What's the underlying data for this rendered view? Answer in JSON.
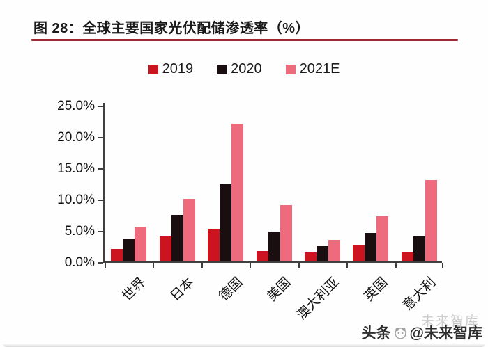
{
  "page": {
    "title": "图 28：全球主要国家光伏配储渗透率（%）"
  },
  "colors": {
    "underline_red": "#9a2b33",
    "axis": "#3f3f3f",
    "series_2019": "#cc1420",
    "series_2020": "#1b0e10",
    "series_2021e": "#ee6b7e"
  },
  "chart_data": {
    "type": "bar",
    "title": "全球主要国家光伏配储渗透率（%）",
    "xlabel": "",
    "ylabel": "",
    "ylim": [
      0,
      25
    ],
    "grid": false,
    "legend_position": "top-center",
    "categories": [
      "世界",
      "日本",
      "德国",
      "美国",
      "澳大利亚",
      "英国",
      "意大利"
    ],
    "series": [
      {
        "name": "2019",
        "color": "#cc1420",
        "values": [
          2.0,
          4.0,
          5.2,
          1.7,
          1.4,
          2.7,
          1.5
        ]
      },
      {
        "name": "2020",
        "color": "#1b0e10",
        "values": [
          3.7,
          7.5,
          12.3,
          4.8,
          2.5,
          4.6,
          4.0
        ]
      },
      {
        "name": "2021E",
        "color": "#ee6b7e",
        "values": [
          5.6,
          10.0,
          22.0,
          9.0,
          3.5,
          7.2,
          13.0
        ]
      }
    ],
    "y_ticks": [
      {
        "value": 0,
        "label": "0.0%"
      },
      {
        "value": 5,
        "label": "5.0%"
      },
      {
        "value": 10,
        "label": "10.0%"
      },
      {
        "value": 15,
        "label": "15.0%"
      },
      {
        "value": 20,
        "label": "20.0%"
      },
      {
        "value": 25,
        "label": "25.0%"
      }
    ]
  },
  "watermark": {
    "faint": "未来智库",
    "prefix": "头条",
    "suffix": "@未来智库"
  }
}
